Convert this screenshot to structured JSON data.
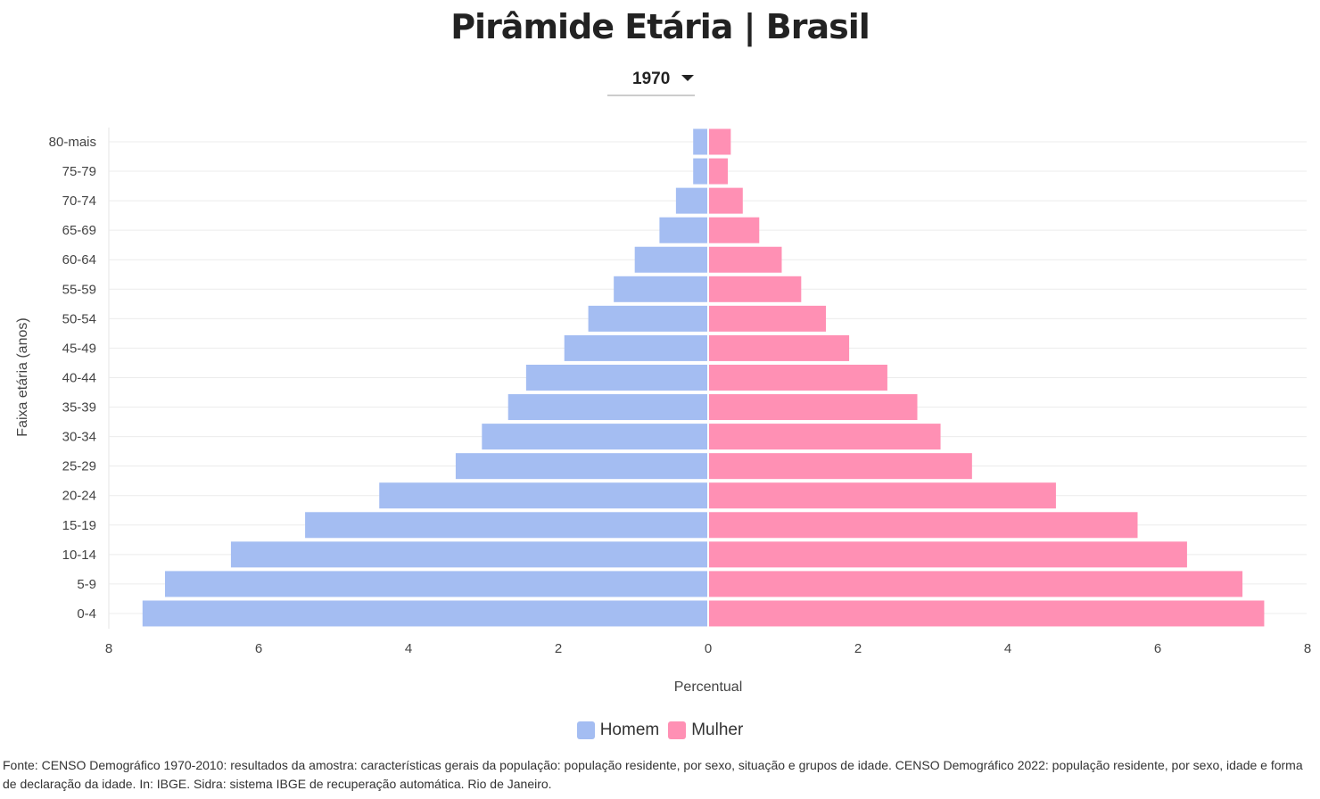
{
  "title": "Pirâmide Etária | Brasil",
  "year_select": {
    "selected": "1970"
  },
  "chart_data": {
    "type": "bar",
    "orientation": "horizontal-population-pyramid",
    "ylabel": "Faixa etária (anos)",
    "xlabel": "Percentual",
    "xlim": [
      -8,
      8
    ],
    "xticks": [
      "8",
      "6",
      "4",
      "2",
      "0",
      "2",
      "4",
      "6",
      "8"
    ],
    "categories": [
      "80-mais",
      "75-79",
      "70-74",
      "65-69",
      "60-64",
      "55-59",
      "50-54",
      "45-49",
      "40-44",
      "35-39",
      "30-34",
      "25-29",
      "20-24",
      "15-19",
      "10-14",
      "5-9",
      "0-4"
    ],
    "series": [
      {
        "name": "Homem",
        "color": "#a4bdf2",
        "values": [
          0.2,
          0.2,
          0.43,
          0.65,
          0.98,
          1.26,
          1.6,
          1.92,
          2.43,
          2.67,
          3.02,
          3.37,
          4.39,
          5.38,
          6.37,
          7.25,
          7.55
        ]
      },
      {
        "name": "Mulher",
        "color": "#ff90b4",
        "values": [
          0.29,
          0.25,
          0.45,
          0.67,
          0.97,
          1.23,
          1.56,
          1.87,
          2.38,
          2.78,
          3.09,
          3.51,
          4.63,
          5.72,
          6.38,
          7.12,
          7.41
        ]
      }
    ],
    "grid": true,
    "legend": "bottom"
  },
  "source": "Fonte: CENSO Demográfico 1970-2010: resultados da amostra: características gerais da população: população residente, por sexo, situação e grupos de idade. CENSO Demográfico 2022: população residente, por sexo, idade e forma de declaração da idade. In: IBGE. Sidra: sistema IBGE de recuperação automática. Rio de Janeiro."
}
